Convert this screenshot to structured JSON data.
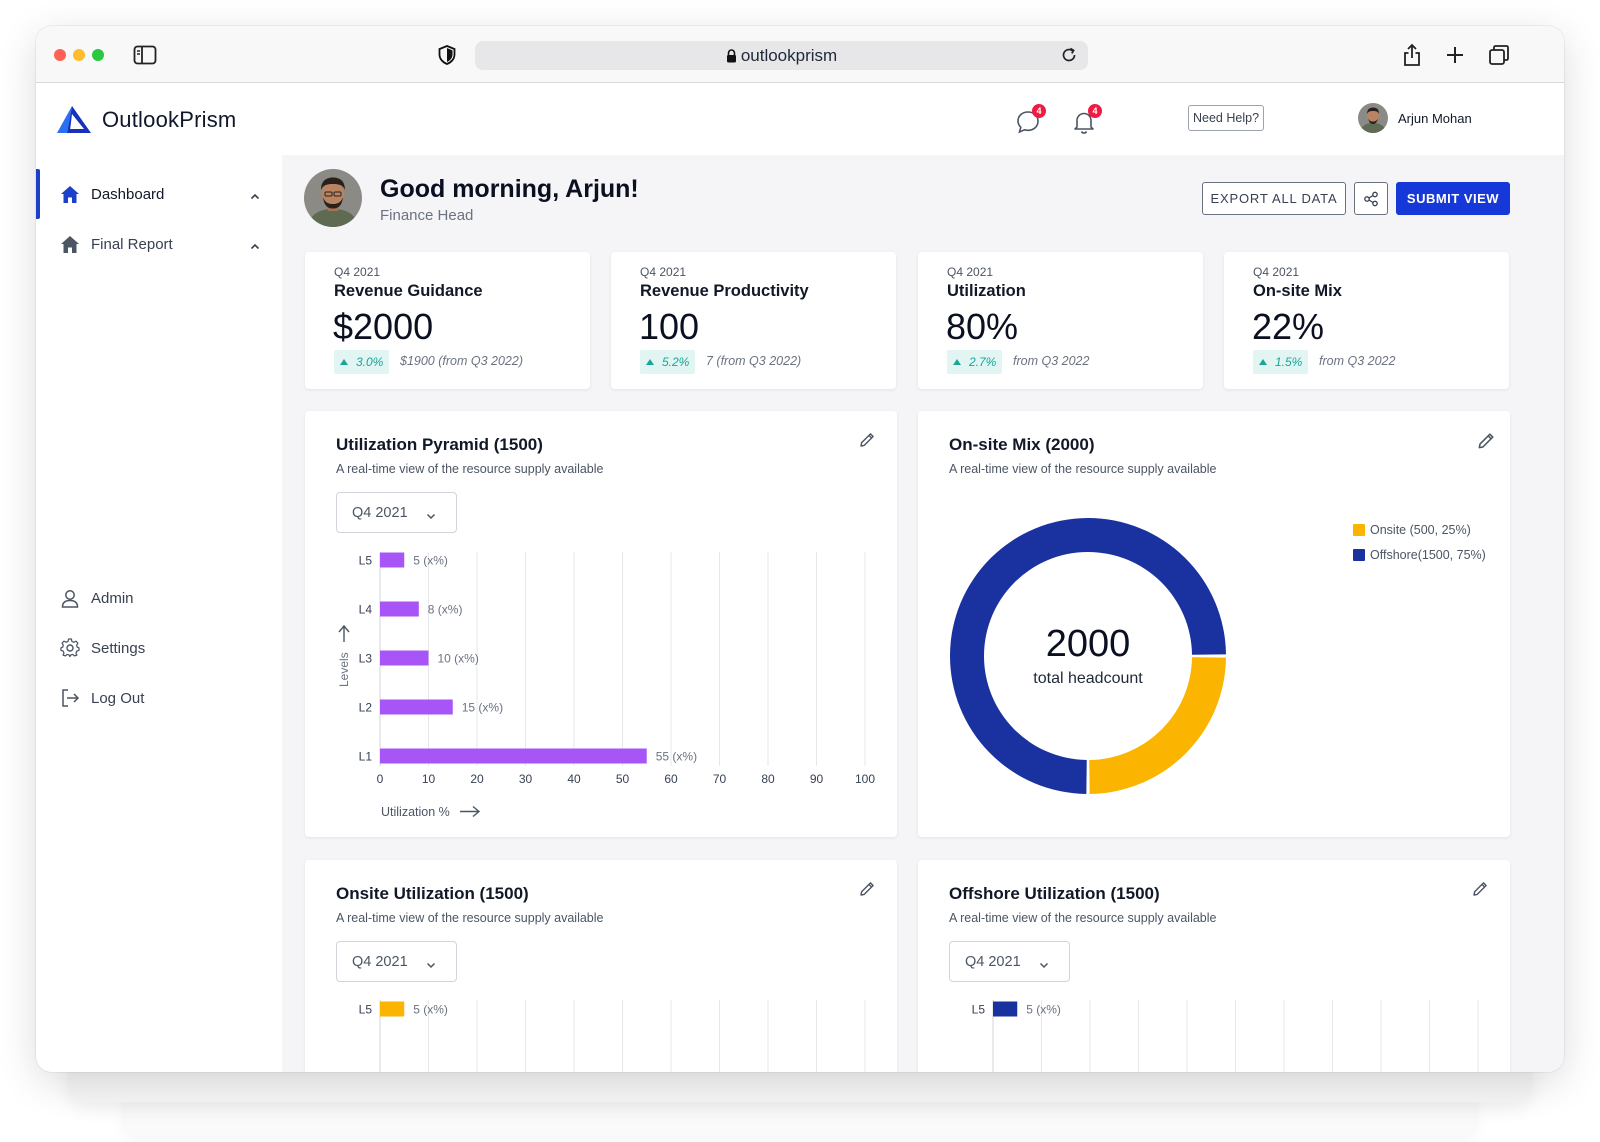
{
  "browser": {
    "url": "outlookprism"
  },
  "app": {
    "name": "OutlookPrism"
  },
  "header": {
    "messages_badge": "4",
    "notifications_badge": "4",
    "help_label": "Need Help?",
    "user_name": "Arjun Mohan"
  },
  "sidebar": {
    "items": [
      {
        "label": "Dashboard",
        "icon": "home-icon",
        "active": true
      },
      {
        "label": "Final Report",
        "icon": "home-icon",
        "active": false
      }
    ],
    "bottom_items": [
      {
        "label": "Admin",
        "icon": "user-icon"
      },
      {
        "label": "Settings",
        "icon": "gear-icon"
      },
      {
        "label": "Log Out",
        "icon": "logout-icon"
      }
    ]
  },
  "greeting": {
    "title": "Good morning, Arjun!",
    "subtitle": "Finance Head",
    "export_label": "EXPORT ALL DATA",
    "submit_label": "SUBMIT VIEW"
  },
  "kpis": [
    {
      "period": "Q4 2021",
      "title": "Revenue Guidance",
      "value": "$2000",
      "change": "3.0%",
      "note": "$1900 (from Q3 2022)"
    },
    {
      "period": "Q4 2021",
      "title": "Revenue Productivity",
      "value": "100",
      "change": "5.2%",
      "note": "7 (from Q3 2022)"
    },
    {
      "period": "Q4 2021",
      "title": "Utilization",
      "value": "80%",
      "change": "2.7%",
      "note": "from Q3 2022"
    },
    {
      "period": "Q4 2021",
      "title": "On-site Mix",
      "value": "22%",
      "change": "1.5%",
      "note": "from Q3 2022"
    }
  ],
  "cards": {
    "pyramid": {
      "title": "Utilization Pyramid (1500)",
      "subtitle": "A real-time view of the resource supply available",
      "select": "Q4 2021"
    },
    "onsite_mix": {
      "title": "On-site Mix (2000)",
      "subtitle": "A real-time view of the resource supply available"
    },
    "onsite_util": {
      "title": "Onsite Utilization (1500)",
      "subtitle": "A real-time view of the resource supply available",
      "select": "Q4 2021"
    },
    "offshore_util": {
      "title": "Offshore Utilization (1500)",
      "subtitle": "A real-time view of the resource supply available",
      "select": "Q4 2021"
    }
  },
  "colors": {
    "accent": "#1638d8",
    "bar_purple": "#a855f7",
    "onsite": "#fbb500",
    "offshore": "#1a32a0",
    "chip_text": "#1aa59a"
  },
  "chart_data": [
    {
      "type": "bar",
      "orientation": "horizontal",
      "categories": [
        "L5",
        "L4",
        "L3",
        "L2",
        "L1"
      ],
      "values": [
        5,
        8,
        10,
        15,
        55
      ],
      "data_labels": [
        "5 (x%)",
        "8 (x%)",
        "10 (x%)",
        "15 (x%)",
        "55 (x%)"
      ],
      "xlabel": "Utilization %",
      "ylabel": "Levels",
      "xticks": [
        0,
        10,
        20,
        30,
        40,
        50,
        60,
        70,
        80,
        90,
        100
      ],
      "xlim": [
        0,
        100
      ],
      "grid": true,
      "color": "#a855f7"
    },
    {
      "type": "pie",
      "donut": true,
      "center_value": "2000",
      "center_label": "total headcount",
      "labels": [
        "Onsite (500, 25%)",
        "Offshore(1500, 75%)"
      ],
      "values": [
        500,
        1500
      ],
      "colors": [
        "#fbb500",
        "#1a32a0"
      ],
      "legend": "top-right"
    },
    {
      "type": "bar",
      "orientation": "horizontal",
      "categories": [
        "L5"
      ],
      "values": [
        5
      ],
      "data_labels": [
        "5 (x%)"
      ],
      "xlim": [
        0,
        100
      ],
      "grid": true,
      "color": "#fbb500"
    },
    {
      "type": "bar",
      "orientation": "horizontal",
      "categories": [
        "L5"
      ],
      "values": [
        5
      ],
      "data_labels": [
        "5 (x%)"
      ],
      "xlim": [
        0,
        100
      ],
      "grid": true,
      "color": "#1a32a0"
    }
  ]
}
